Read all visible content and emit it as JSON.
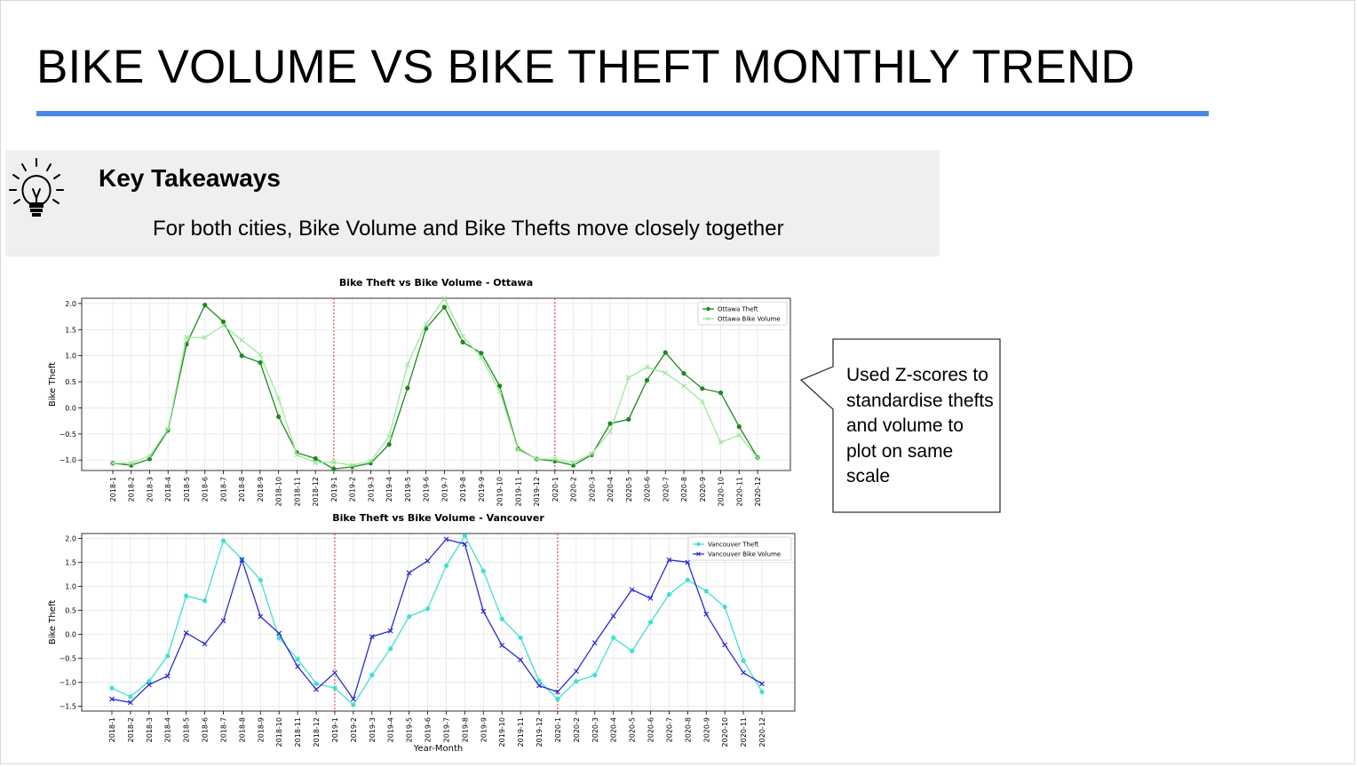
{
  "slide": {
    "title": "BIKE VOLUME VS BIKE THEFT MONTHLY TREND",
    "accent_color": "#4a86e8",
    "takeaways": {
      "heading": "Key Takeaways",
      "text": "For both cities, Bike Volume and Bike Thefts move closely together",
      "icon": "lightbulb-icon"
    },
    "callout": {
      "text": "Used Z-scores to standardise thefts and volume to plot on same scale"
    }
  },
  "chart_data": [
    {
      "type": "line",
      "title": "Bike Theft vs Bike Volume - Ottawa",
      "xlabel": "",
      "ylabel": "Bike Theft",
      "ylim": [
        -1.2,
        2.1
      ],
      "yticks": [
        -1.0,
        -0.5,
        0.0,
        0.5,
        1.0,
        1.5,
        2.0
      ],
      "grid": true,
      "legend": "top-right",
      "year_dividers": [
        "2019-1",
        "2020-1"
      ],
      "categories": [
        "2018-1",
        "2018-2",
        "2018-3",
        "2018-4",
        "2018-5",
        "2018-6",
        "2018-7",
        "2018-8",
        "2018-9",
        "2018-10",
        "2018-11",
        "2018-12",
        "2019-1",
        "2019-2",
        "2019-3",
        "2019-4",
        "2019-5",
        "2019-6",
        "2019-7",
        "2019-8",
        "2019-9",
        "2019-10",
        "2019-11",
        "2019-12",
        "2020-1",
        "2020-2",
        "2020-3",
        "2020-4",
        "2020-5",
        "2020-6",
        "2020-7",
        "2020-8",
        "2020-9",
        "2020-10",
        "2020-11",
        "2020-12"
      ],
      "series": [
        {
          "name": "Ottawa Theft",
          "color": "#1a8a1a",
          "marker": "circle",
          "values": [
            -1.06,
            -1.1,
            -0.98,
            -0.43,
            1.22,
            1.97,
            1.65,
            1.0,
            0.87,
            -0.17,
            -0.86,
            -0.97,
            -1.17,
            -1.13,
            -1.06,
            -0.7,
            0.38,
            1.52,
            1.93,
            1.26,
            1.05,
            0.42,
            -0.78,
            -0.98,
            -1.02,
            -1.1,
            -0.9,
            -0.3,
            -0.22,
            0.53,
            1.06,
            0.66,
            0.37,
            0.29,
            -0.36,
            -0.95
          ]
        },
        {
          "name": "Ottawa Bike Volume",
          "color": "#9de89d",
          "marker": "x",
          "values": [
            -1.06,
            -1.06,
            -0.92,
            -0.41,
            1.35,
            1.35,
            1.58,
            1.3,
            1.02,
            0.18,
            -0.9,
            -1.05,
            -1.04,
            -1.1,
            -1.02,
            -0.55,
            0.83,
            1.6,
            2.1,
            1.37,
            0.97,
            0.32,
            -0.8,
            -0.98,
            -0.98,
            -1.05,
            -0.88,
            -0.45,
            0.58,
            0.78,
            0.67,
            0.42,
            0.12,
            -0.66,
            -0.52,
            -0.96
          ]
        }
      ]
    },
    {
      "type": "line",
      "title": "Bike Theft vs Bike Volume - Vancouver",
      "xlabel": "Year-Month",
      "ylabel": "Bike Theft",
      "ylim": [
        -1.6,
        2.1
      ],
      "yticks": [
        -1.5,
        -1.0,
        -0.5,
        0.0,
        0.5,
        1.0,
        1.5,
        2.0
      ],
      "grid": true,
      "legend": "top-right",
      "year_dividers": [
        "2019-1",
        "2020-1"
      ],
      "categories": [
        "2018-1",
        "2018-2",
        "2018-3",
        "2018-4",
        "2018-5",
        "2018-6",
        "2018-7",
        "2018-8",
        "2018-9",
        "2018-10",
        "2018-11",
        "2018-12",
        "2019-1",
        "2019-2",
        "2019-3",
        "2019-4",
        "2019-5",
        "2019-6",
        "2019-7",
        "2019-8",
        "2019-9",
        "2019-10",
        "2019-11",
        "2019-12",
        "2020-1",
        "2020-2",
        "2020-3",
        "2020-4",
        "2020-5",
        "2020-6",
        "2020-7",
        "2020-8",
        "2020-9",
        "2020-10",
        "2020-11",
        "2020-12"
      ],
      "series": [
        {
          "name": "Vancouver Theft",
          "color": "#40e0d0",
          "marker": "circle",
          "values": [
            -1.12,
            -1.3,
            -0.98,
            -0.45,
            0.8,
            0.7,
            1.95,
            1.57,
            1.13,
            -0.08,
            -0.52,
            -1.03,
            -1.12,
            -1.47,
            -0.85,
            -0.3,
            0.37,
            0.53,
            1.43,
            2.05,
            1.32,
            0.32,
            -0.07,
            -0.97,
            -1.35,
            -0.98,
            -0.85,
            -0.07,
            -0.35,
            0.25,
            0.83,
            1.13,
            0.9,
            0.57,
            -0.55,
            -1.2
          ]
        },
        {
          "name": "Vancouver Bike Volume",
          "color": "#2b2bd6",
          "marker": "x",
          "values": [
            -1.35,
            -1.42,
            -1.05,
            -0.87,
            0.03,
            -0.2,
            0.28,
            1.55,
            0.37,
            0.02,
            -0.67,
            -1.15,
            -0.8,
            -1.35,
            -0.05,
            0.07,
            1.28,
            1.53,
            1.98,
            1.88,
            0.48,
            -0.23,
            -0.53,
            -1.07,
            -1.2,
            -0.77,
            -0.18,
            0.38,
            0.93,
            0.75,
            1.55,
            1.5,
            0.42,
            -0.22,
            -0.8,
            -1.03
          ]
        }
      ]
    }
  ]
}
